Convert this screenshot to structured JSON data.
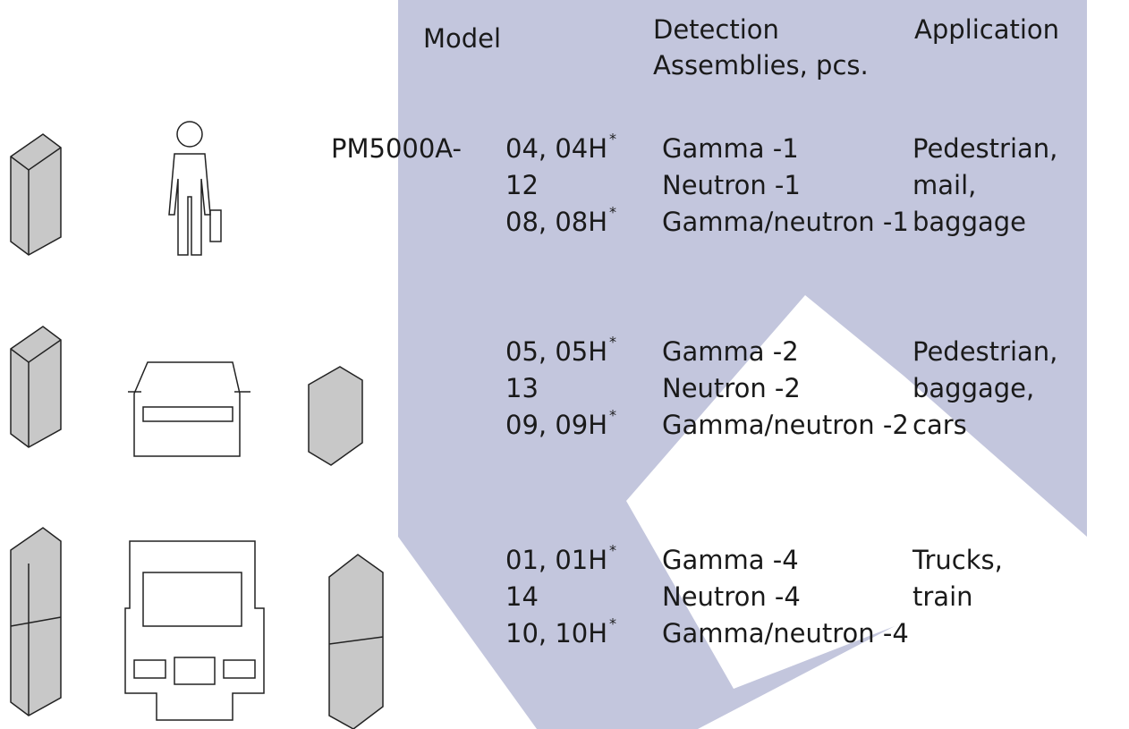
{
  "header": {
    "model": "Model",
    "detection": [
      "Detection",
      "Assemblies, pcs."
    ],
    "application": "Application"
  },
  "prefix": "PM5000A-",
  "rows": [
    {
      "models": [
        {
          "text": "04, 04H",
          "note": "*"
        },
        {
          "text": "12"
        },
        {
          "text": "08, 08H",
          "note": "*"
        }
      ],
      "detection": [
        "Gamma -1",
        "Neutron -1",
        "Gamma/neutron -1"
      ],
      "application": [
        "Pedestrian,",
        "mail,",
        "baggage"
      ]
    },
    {
      "models": [
        {
          "text": "05, 05H",
          "note": "*"
        },
        {
          "text": "13"
        },
        {
          "text": "09, 09H",
          "note": "*"
        }
      ],
      "detection": [
        "Gamma -2",
        "Neutron -2",
        "Gamma/neutron -2"
      ],
      "application": [
        "Pedestrian,",
        "baggage,",
        "cars"
      ]
    },
    {
      "models": [
        {
          "text": "01, 01H",
          "note": "*"
        },
        {
          "text": "14"
        },
        {
          "text": "10, 10H",
          "note": "*"
        }
      ],
      "detection": [
        "Gamma -4",
        "Neutron -4",
        "Gamma/neutron -4"
      ],
      "application": [
        "Trucks,",
        "train"
      ]
    }
  ]
}
